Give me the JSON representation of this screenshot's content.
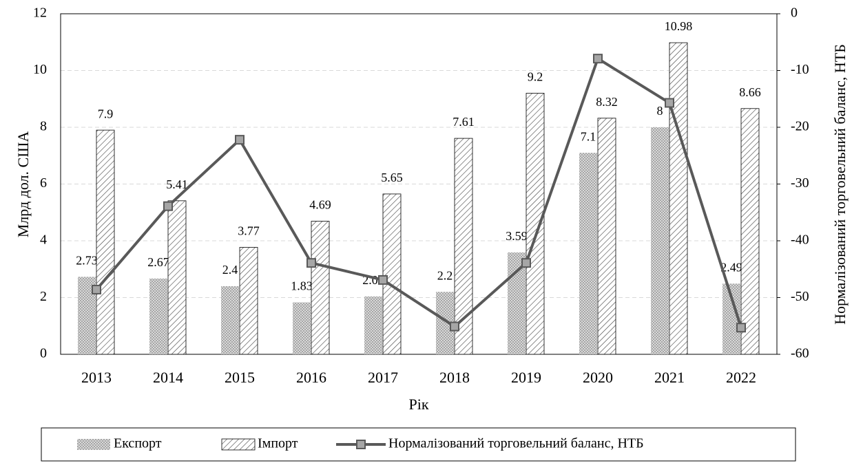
{
  "chart_data": {
    "type": "bar",
    "x_label": "Рік",
    "y_label": "Млрд дол. США",
    "y2_label": "Нормалізований торговельний баланс, НТБ",
    "categories": [
      "2013",
      "2014",
      "2015",
      "2016",
      "2017",
      "2018",
      "2019",
      "2020",
      "2021",
      "2022"
    ],
    "series": [
      {
        "name": "Експорт",
        "type": "bar",
        "color": "#a6a6a6",
        "values": [
          2.73,
          2.67,
          2.4,
          1.83,
          2.04,
          2.2,
          3.59,
          7.1,
          8,
          2.49
        ]
      },
      {
        "name": "Імпорт",
        "type": "bar",
        "color": "#404040",
        "values": [
          7.9,
          5.41,
          3.77,
          4.69,
          5.65,
          7.61,
          9.2,
          8.32,
          10.98,
          8.66
        ]
      },
      {
        "name": "Нормалізований торговельний баланс, НТБ",
        "type": "line",
        "axis": "y2",
        "color": "#595959",
        "values": [
          -48.6,
          -33.9,
          -22.2,
          -43.9,
          -46.9,
          -55.1,
          -43.9,
          -7.9,
          -15.7,
          -55.3
        ]
      }
    ],
    "ylim": [
      0,
      12
    ],
    "yticks": [
      0,
      2,
      4,
      6,
      8,
      10,
      12
    ],
    "y2lim": [
      -60,
      0
    ],
    "y2ticks": [
      -60,
      -50,
      -40,
      -30,
      -20,
      -10,
      0
    ],
    "grid": true,
    "legend": "bottom"
  }
}
